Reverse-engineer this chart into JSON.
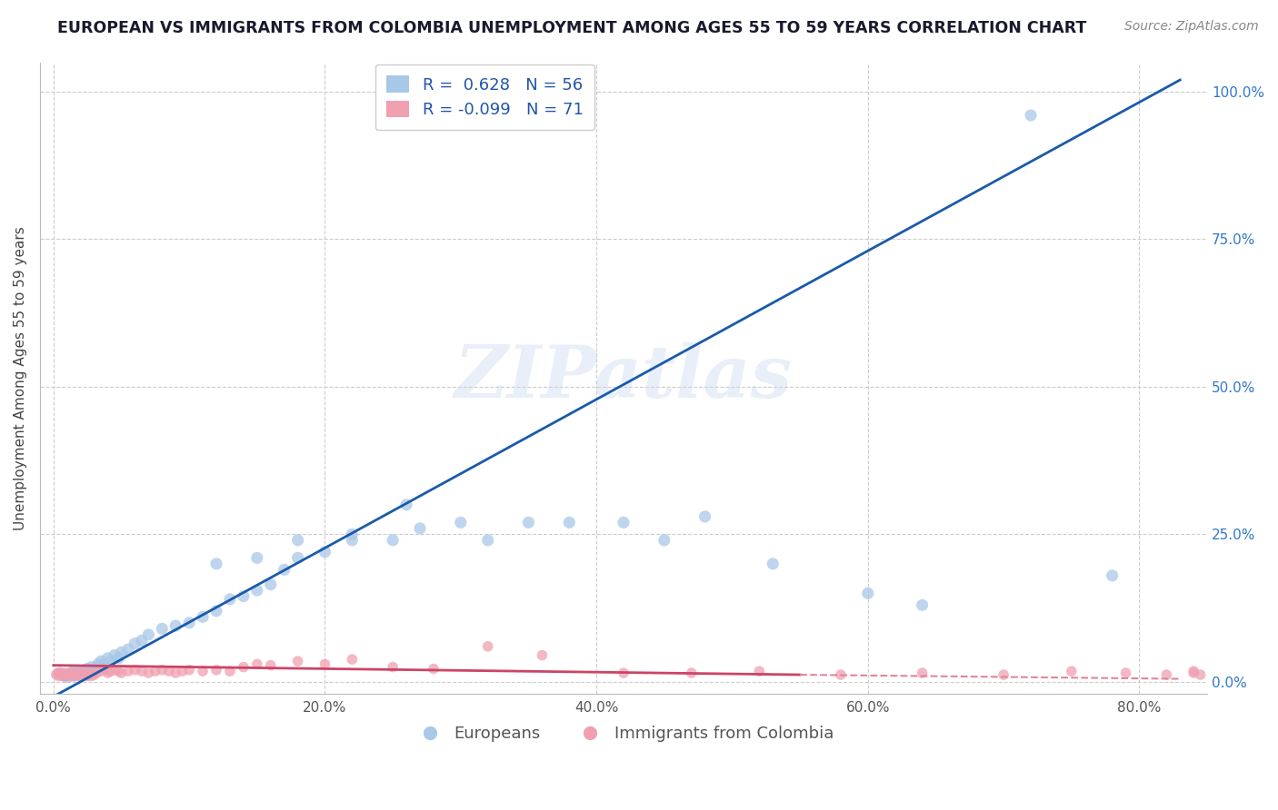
{
  "title": "EUROPEAN VS IMMIGRANTS FROM COLOMBIA UNEMPLOYMENT AMONG AGES 55 TO 59 YEARS CORRELATION CHART",
  "source": "Source: ZipAtlas.com",
  "watermark": "ZIPatlas",
  "ylabel": "Unemployment Among Ages 55 to 59 years",
  "x_tick_labels": [
    "0.0%",
    "20.0%",
    "40.0%",
    "60.0%",
    "80.0%"
  ],
  "x_tick_values": [
    0.0,
    0.2,
    0.4,
    0.6,
    0.8
  ],
  "y_tick_labels": [
    "0.0%",
    "25.0%",
    "50.0%",
    "75.0%",
    "100.0%"
  ],
  "y_tick_values": [
    0.0,
    0.25,
    0.5,
    0.75,
    1.0
  ],
  "xlim": [
    -0.01,
    0.85
  ],
  "ylim": [
    -0.02,
    1.05
  ],
  "legend_labels": [
    "Europeans",
    "Immigrants from Colombia"
  ],
  "legend_R": [
    0.628,
    -0.099
  ],
  "legend_N": [
    56,
    71
  ],
  "blue_color": "#a8c8e8",
  "pink_color": "#f0a0b0",
  "blue_line_color": "#1a5aaa",
  "pink_line_solid_color": "#cc4466",
  "pink_line_dash_color": "#dd8899",
  "grid_color": "#cccccc",
  "background_color": "#ffffff",
  "title_fontsize": 12.5,
  "axis_label_fontsize": 11,
  "tick_fontsize": 11,
  "blue_trend_x0": 0.0,
  "blue_trend_y0": -0.025,
  "blue_trend_x1": 0.83,
  "blue_trend_y1": 1.02,
  "pink_trend_solid_x0": 0.0,
  "pink_trend_solid_y0": 0.028,
  "pink_trend_solid_x1": 0.55,
  "pink_trend_solid_y1": 0.012,
  "pink_trend_dash_x0": 0.55,
  "pink_trend_dash_y0": 0.012,
  "pink_trend_dash_x1": 0.83,
  "pink_trend_dash_y1": 0.005,
  "blue_scatter_x": [
    0.005,
    0.008,
    0.01,
    0.012,
    0.013,
    0.015,
    0.015,
    0.017,
    0.018,
    0.02,
    0.02,
    0.022,
    0.023,
    0.025,
    0.025,
    0.027,
    0.028,
    0.03,
    0.032,
    0.033,
    0.035,
    0.037,
    0.04,
    0.042,
    0.045,
    0.048,
    0.05,
    0.055,
    0.06,
    0.065,
    0.07,
    0.08,
    0.09,
    0.1,
    0.11,
    0.12,
    0.13,
    0.14,
    0.15,
    0.16,
    0.17,
    0.18,
    0.2,
    0.22,
    0.25,
    0.27,
    0.32,
    0.35,
    0.38,
    0.42,
    0.45,
    0.48,
    0.53,
    0.6,
    0.64,
    0.78
  ],
  "blue_scatter_y": [
    0.015,
    0.01,
    0.008,
    0.012,
    0.015,
    0.01,
    0.018,
    0.012,
    0.015,
    0.018,
    0.01,
    0.015,
    0.02,
    0.018,
    0.022,
    0.02,
    0.025,
    0.018,
    0.025,
    0.03,
    0.035,
    0.028,
    0.04,
    0.035,
    0.045,
    0.04,
    0.05,
    0.055,
    0.065,
    0.07,
    0.08,
    0.09,
    0.095,
    0.1,
    0.11,
    0.12,
    0.14,
    0.145,
    0.155,
    0.165,
    0.19,
    0.21,
    0.22,
    0.24,
    0.24,
    0.26,
    0.24,
    0.27,
    0.27,
    0.27,
    0.24,
    0.28,
    0.2,
    0.15,
    0.13,
    0.18
  ],
  "blue_outlier_x": [
    0.12,
    0.15,
    0.18,
    0.22,
    0.26,
    0.3,
    0.34,
    0.72
  ],
  "blue_outlier_y": [
    0.2,
    0.21,
    0.24,
    0.25,
    0.3,
    0.27,
    0.96,
    0.96
  ],
  "pink_scatter_x": [
    0.002,
    0.003,
    0.004,
    0.005,
    0.006,
    0.007,
    0.008,
    0.009,
    0.01,
    0.011,
    0.012,
    0.013,
    0.014,
    0.015,
    0.016,
    0.017,
    0.018,
    0.019,
    0.02,
    0.021,
    0.022,
    0.023,
    0.024,
    0.025,
    0.026,
    0.027,
    0.028,
    0.03,
    0.032,
    0.035,
    0.038,
    0.04,
    0.042,
    0.045,
    0.048,
    0.05,
    0.055,
    0.06,
    0.065,
    0.07,
    0.075,
    0.08,
    0.085,
    0.09,
    0.095,
    0.1,
    0.11,
    0.12,
    0.13,
    0.14,
    0.15,
    0.16,
    0.18,
    0.2,
    0.22,
    0.25,
    0.28,
    0.32,
    0.36,
    0.42,
    0.47,
    0.52,
    0.58,
    0.64,
    0.7,
    0.75,
    0.79,
    0.82,
    0.84,
    0.84,
    0.845
  ],
  "pink_scatter_y": [
    0.012,
    0.015,
    0.01,
    0.012,
    0.015,
    0.01,
    0.012,
    0.015,
    0.01,
    0.012,
    0.015,
    0.01,
    0.012,
    0.015,
    0.01,
    0.012,
    0.015,
    0.01,
    0.012,
    0.015,
    0.01,
    0.012,
    0.015,
    0.01,
    0.012,
    0.015,
    0.01,
    0.012,
    0.015,
    0.018,
    0.02,
    0.015,
    0.018,
    0.02,
    0.018,
    0.015,
    0.018,
    0.02,
    0.018,
    0.015,
    0.018,
    0.02,
    0.018,
    0.015,
    0.018,
    0.02,
    0.018,
    0.02,
    0.018,
    0.025,
    0.03,
    0.028,
    0.035,
    0.03,
    0.038,
    0.025,
    0.022,
    0.06,
    0.045,
    0.015,
    0.015,
    0.018,
    0.012,
    0.015,
    0.012,
    0.018,
    0.015,
    0.012,
    0.015,
    0.018,
    0.012
  ]
}
